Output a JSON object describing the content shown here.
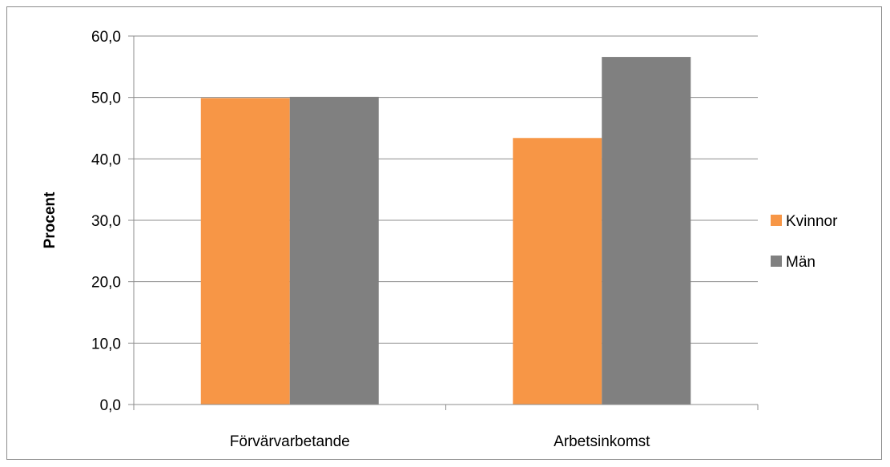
{
  "chart_data": {
    "type": "bar",
    "categories": [
      "Förvärvarbetande",
      "Arbetsinkomst"
    ],
    "series": [
      {
        "name": "Kvinnor",
        "color": "#F79646",
        "values": [
          49.9,
          43.4
        ]
      },
      {
        "name": "Män",
        "color": "#808080",
        "values": [
          50.1,
          56.6
        ]
      }
    ],
    "title": "",
    "xlabel": "",
    "ylabel": "Procent",
    "ylim": [
      0,
      60
    ],
    "yticks": [
      "0,0",
      "10,0",
      "20,0",
      "30,0",
      "40,0",
      "50,0",
      "60,0"
    ],
    "grid": true,
    "legend_position": "right"
  }
}
